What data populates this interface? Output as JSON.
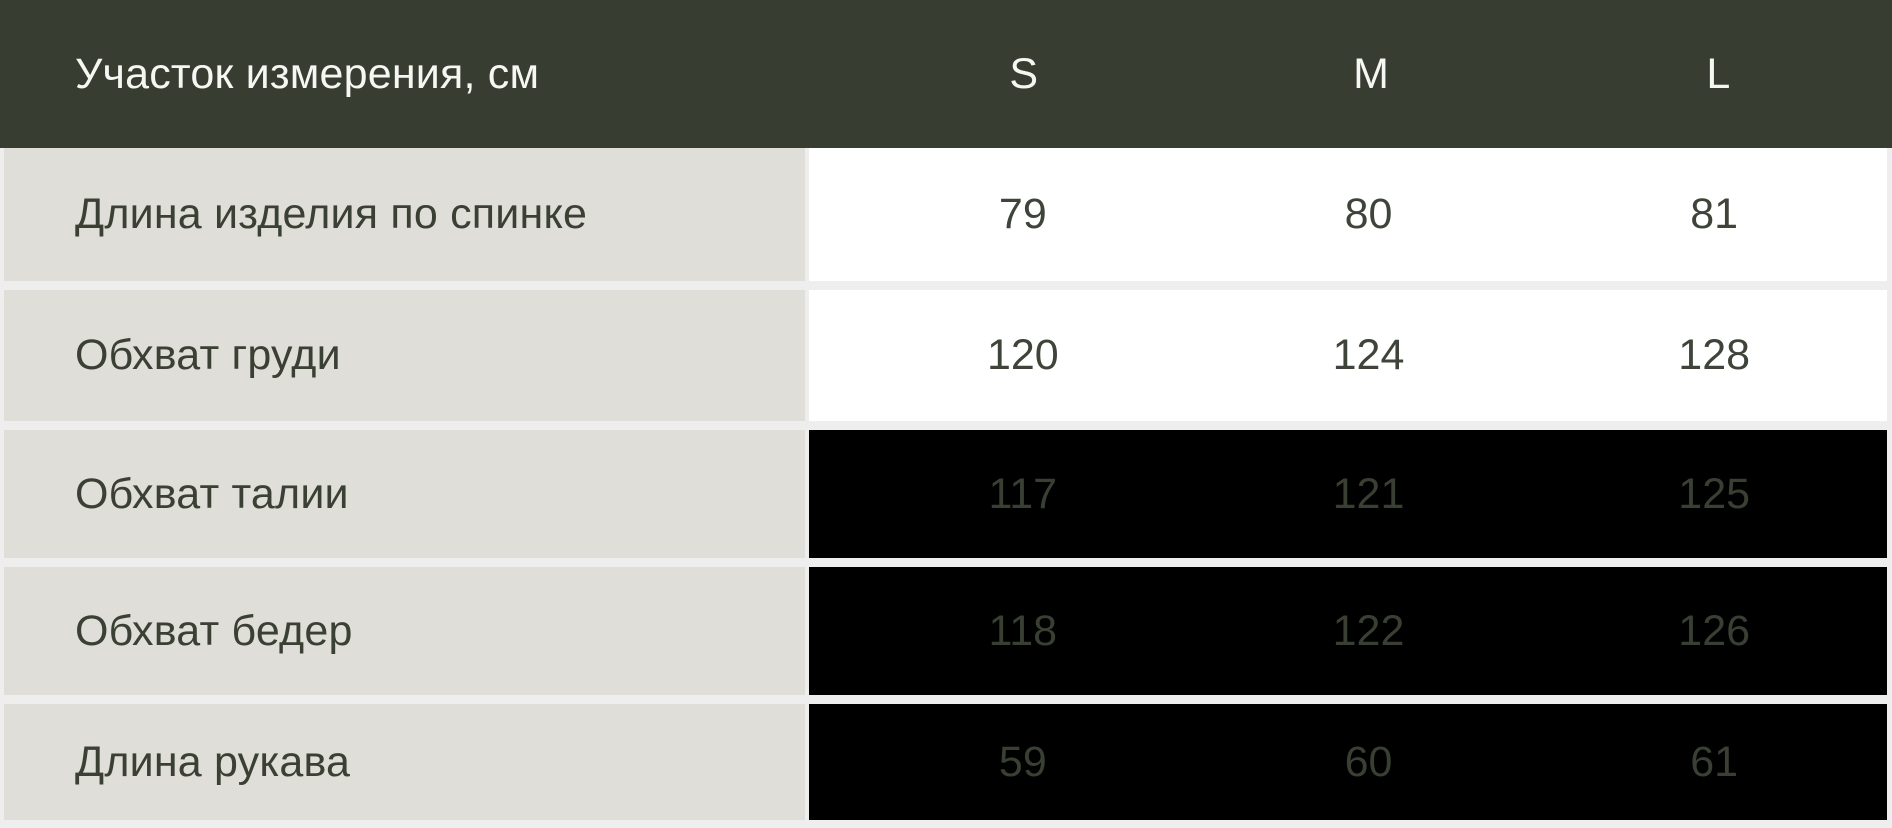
{
  "table": {
    "header": {
      "label": "Участок измерения, см",
      "sizes": [
        "S",
        "M",
        "L"
      ]
    },
    "rows": [
      {
        "label": "Длина изделия по спинке",
        "values": [
          "79",
          "80",
          "81"
        ],
        "variant": "light"
      },
      {
        "label": "Обхват груди",
        "values": [
          "120",
          "124",
          "128"
        ],
        "variant": "light"
      },
      {
        "label": "Обхват талии",
        "values": [
          "117",
          "121",
          "125"
        ],
        "variant": "dark"
      },
      {
        "label": "Обхват бедер",
        "values": [
          "118",
          "122",
          "126"
        ],
        "variant": "dark"
      },
      {
        "label": "Длина рукава",
        "values": [
          "59",
          "60",
          "61"
        ],
        "variant": "dark"
      }
    ]
  },
  "colors": {
    "header_bg": "#373d31",
    "header_text": "#f6f6f2",
    "label_cell_bg": "#dfded8",
    "label_text": "#3a4034",
    "light_cell_bg": "#ffffff",
    "light_cell_text": "#3e4439",
    "dark_cell_bg": "#000000",
    "dark_cell_text": "#394033",
    "gap": "#efeeee"
  }
}
